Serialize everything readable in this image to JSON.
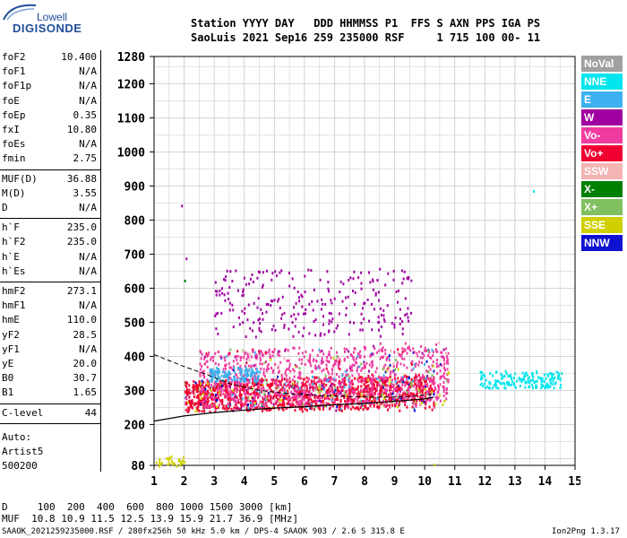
{
  "logo": {
    "top": "Lowell",
    "main": "DIGISONDE"
  },
  "header": {
    "line1": "Station YYYY DAY   DDD HHMMSS P1  FFS S AXN PPS IGA PS",
    "line2": "SaoLuis 2021 Sep16 259 235000 RSF     1 715 100 00- 11"
  },
  "params": [
    {
      "name": "foF2",
      "value": "10.400"
    },
    {
      "name": "foF1",
      "value": "N/A"
    },
    {
      "name": "foF1p",
      "value": "N/A"
    },
    {
      "name": "foE",
      "value": "N/A"
    },
    {
      "name": "foEp",
      "value": "0.35"
    },
    {
      "name": "fxI",
      "value": "10.80"
    },
    {
      "name": "foEs",
      "value": "N/A"
    },
    {
      "name": "fmin",
      "value": "2.75"
    },
    {
      "name": "MUF(D)",
      "value": "36.88"
    },
    {
      "name": "M(D)",
      "value": "3.55"
    },
    {
      "name": "D",
      "value": "N/A"
    },
    {
      "name": "h`F",
      "value": "235.0"
    },
    {
      "name": "h`F2",
      "value": "235.0"
    },
    {
      "name": "h`E",
      "value": "N/A"
    },
    {
      "name": "h`Es",
      "value": "N/A"
    },
    {
      "name": "hmF2",
      "value": "273.1"
    },
    {
      "name": "hmF1",
      "value": "N/A"
    },
    {
      "name": "hmE",
      "value": "110.0"
    },
    {
      "name": "yF2",
      "value": "28.5"
    },
    {
      "name": "yF1",
      "value": "N/A"
    },
    {
      "name": "yE",
      "value": "20.0"
    },
    {
      "name": "B0",
      "value": "30.7"
    },
    {
      "name": "B1",
      "value": "1.65"
    },
    {
      "name": "C-level",
      "value": "44"
    }
  ],
  "autoscaling": [
    "Auto:",
    "Artist5",
    "500200"
  ],
  "legend": [
    {
      "label": "NoVal",
      "color": "#a0a0a0"
    },
    {
      "label": "NNE",
      "color": "#00e5ee"
    },
    {
      "label": "E",
      "color": "#3cb0f0"
    },
    {
      "label": "W",
      "color": "#a000a0"
    },
    {
      "label": "Vo-",
      "color": "#f03ca0"
    },
    {
      "label": "Vo+",
      "color": "#f00030"
    },
    {
      "label": "SSW",
      "color": "#f4b4b4"
    },
    {
      "label": "X-",
      "color": "#008000"
    },
    {
      "label": "X+",
      "color": "#80c060"
    },
    {
      "label": "SSE",
      "color": "#d0d000"
    },
    {
      "label": "NNW",
      "color": "#1010d0"
    }
  ],
  "footer": {
    "distance_line": "D     100  200  400  600  800 1000 1500 3000 [km]",
    "muf_line": "MUF  10.8 10.9 11.5 12.5 13.9 15.9 21.7 36.9 [MHz]",
    "file_line": "SAAOK_2021259235000.RSF / 280fx256h 50 kHz 5.0 km / DPS-4 SAAOK 903 / 2.6 S 315.8 E",
    "version": "Ion2Png 1.3.17"
  },
  "chart_data": {
    "type": "scatter",
    "xlim": [
      1,
      15
    ],
    "ylim": [
      80,
      1280
    ],
    "x_ticks": [
      "1",
      "2",
      "3",
      "4",
      "5",
      "6",
      "7",
      "8",
      "9",
      "10",
      "11",
      "12",
      "13",
      "14",
      "15"
    ],
    "y_ticks": [
      "80",
      "200",
      "300",
      "400",
      "500",
      "600",
      "700",
      "800",
      "900",
      "1000",
      "1100",
      "1200",
      "1280"
    ],
    "grid": true,
    "legend_placement": "right",
    "clusters": [
      {
        "series": "Vo+",
        "x": [
          2.0,
          10.3
        ],
        "y": [
          240,
          330
        ]
      },
      {
        "series": "Vo-",
        "x": [
          2.5,
          10.8
        ],
        "y": [
          250,
          420
        ]
      },
      {
        "series": "W",
        "x": [
          3.0,
          9.6
        ],
        "y": [
          460,
          660
        ]
      },
      {
        "series": "NNE",
        "x": [
          11.8,
          14.6
        ],
        "y": [
          310,
          360
        ]
      },
      {
        "series": "E",
        "x": [
          2.8,
          4.5
        ],
        "y": [
          330,
          370
        ]
      },
      {
        "series": "SSE",
        "x": [
          1.0,
          2.0
        ],
        "y": [
          80,
          110
        ]
      }
    ],
    "profile_curve": {
      "x": [
        1.0,
        2.0,
        3.0,
        4.0,
        5.0,
        6.0,
        7.0,
        8.0,
        9.0,
        10.0,
        10.3
      ],
      "y": [
        210,
        225,
        235,
        242,
        248,
        252,
        258,
        262,
        268,
        275,
        280
      ]
    },
    "virtual_height_trace": {
      "x": [
        1.0,
        2.0,
        2.8,
        3.5,
        4.5,
        5.5,
        6.5,
        7.5,
        8.5,
        9.5,
        10.3
      ],
      "y": [
        405,
        370,
        345,
        320,
        300,
        290,
        285,
        282,
        280,
        282,
        290
      ]
    }
  }
}
